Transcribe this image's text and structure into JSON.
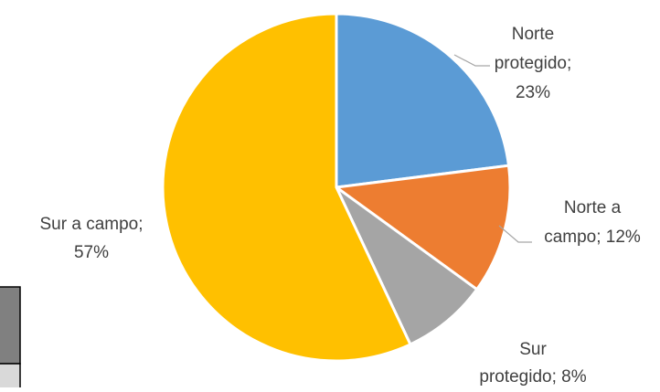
{
  "chart_data": {
    "type": "pie",
    "categories": [
      "Norte protegido",
      "Norte a campo",
      "Sur protegido",
      "Sur a campo"
    ],
    "values": [
      23,
      12,
      8,
      57
    ],
    "colors": [
      "#5b9bd5",
      "#ed7d31",
      "#a5a5a5",
      "#ffc000"
    ],
    "data_labels": [
      [
        "Norte",
        "protegido;",
        "23%"
      ],
      [
        "Norte a",
        "campo; 12%"
      ],
      [
        "Sur",
        "protegido; 8%"
      ],
      [
        "Sur a campo;",
        "57%"
      ]
    ],
    "start_angle_deg": 0,
    "direction": "clockwise",
    "title": "",
    "legend": "none"
  }
}
